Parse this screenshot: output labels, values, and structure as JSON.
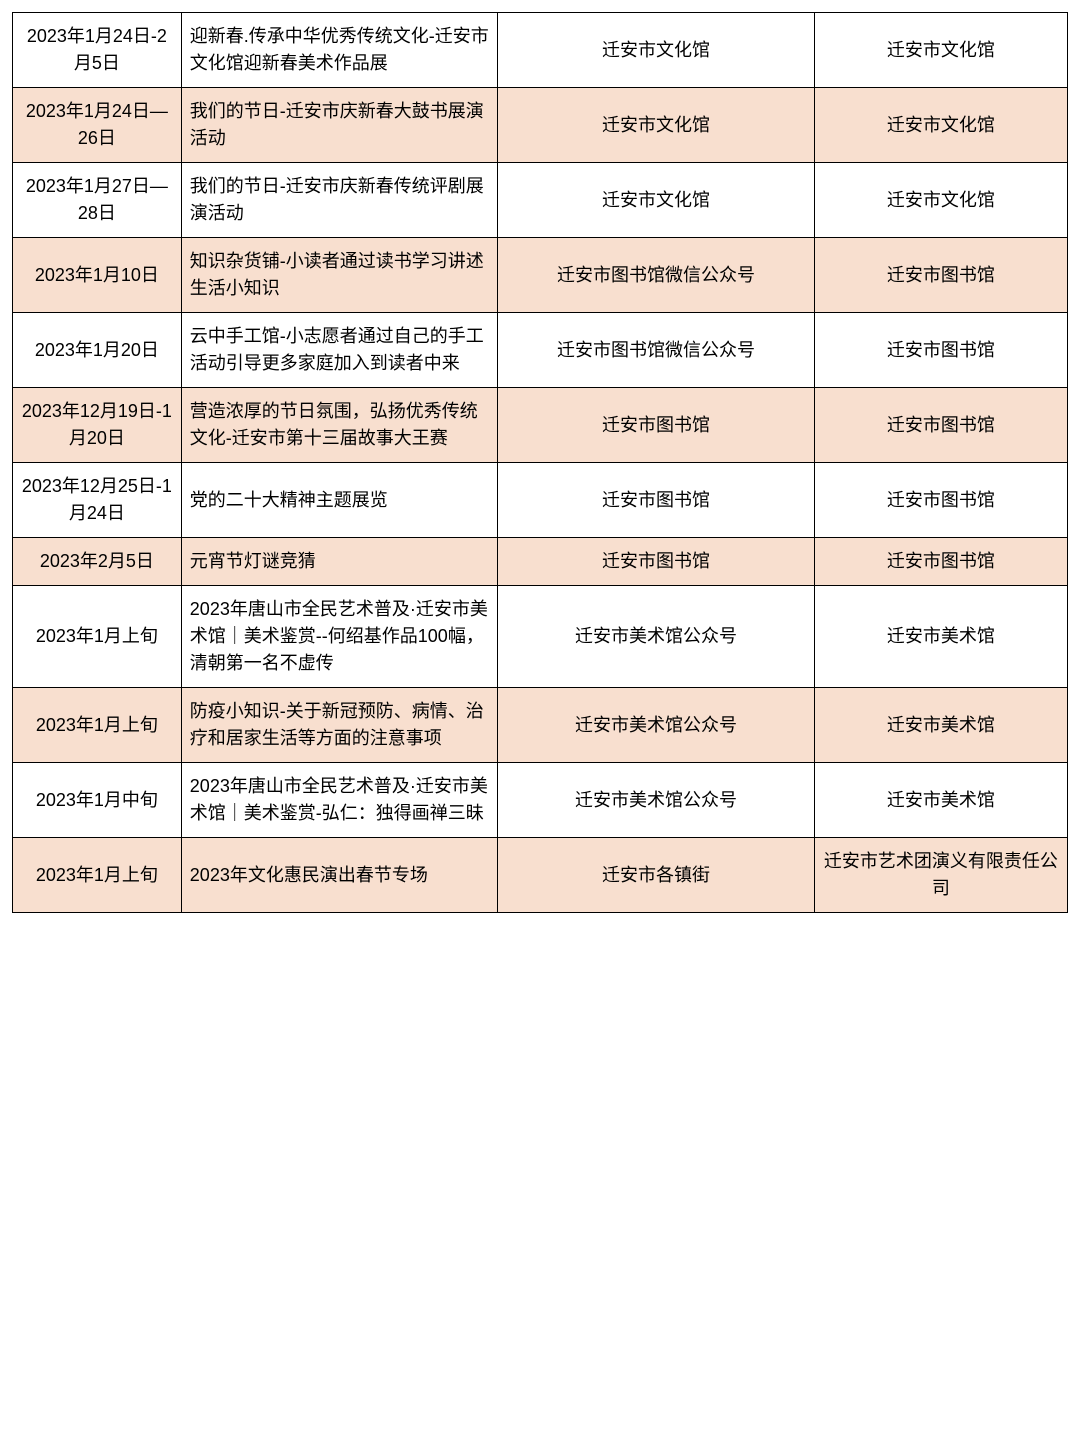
{
  "table": {
    "columns": [
      "date",
      "event",
      "location",
      "organizer"
    ],
    "col_widths_pct": [
      16,
      30,
      30,
      24
    ],
    "col_align": [
      "center",
      "left",
      "center",
      "center"
    ],
    "border_color": "#000000",
    "shade_color": "#f8dfcf",
    "background_color": "#ffffff",
    "font_size_pt": 18,
    "rows": [
      {
        "shaded": false,
        "date": "2023年1月24日-2月5日",
        "event": "迎新春.传承中华优秀传统文化-迁安市文化馆迎新春美术作品展",
        "location": "迁安市文化馆",
        "organizer": "迁安市文化馆"
      },
      {
        "shaded": true,
        "date": "2023年1月24日—26日",
        "event": "我们的节日-迁安市庆新春大鼓书展演活动",
        "location": "迁安市文化馆",
        "organizer": "迁安市文化馆"
      },
      {
        "shaded": false,
        "date": "2023年1月27日—28日",
        "event": "我们的节日-迁安市庆新春传统评剧展演活动",
        "location": "迁安市文化馆",
        "organizer": "迁安市文化馆"
      },
      {
        "shaded": true,
        "date": "2023年1月10日",
        "event": "知识杂货铺-小读者通过读书学习讲述生活小知识",
        "location": "迁安市图书馆微信公众号",
        "organizer": "迁安市图书馆"
      },
      {
        "shaded": false,
        "date": "2023年1月20日",
        "event": "云中手工馆-小志愿者通过自己的手工活动引导更多家庭加入到读者中来",
        "location": "迁安市图书馆微信公众号",
        "organizer": "迁安市图书馆"
      },
      {
        "shaded": true,
        "date": "2023年12月19日-1月20日",
        "event": "营造浓厚的节日氛围，弘扬优秀传统文化-迁安市第十三届故事大王赛",
        "location": "迁安市图书馆",
        "organizer": "迁安市图书馆"
      },
      {
        "shaded": false,
        "date": "2023年12月25日-1月24日",
        "event": "党的二十大精神主题展览",
        "location": "迁安市图书馆",
        "organizer": "迁安市图书馆"
      },
      {
        "shaded": true,
        "date": "2023年2月5日",
        "event": "元宵节灯谜竞猜",
        "location": "迁安市图书馆",
        "organizer": "迁安市图书馆"
      },
      {
        "shaded": false,
        "date": "2023年1月上旬",
        "event": "2023年唐山市全民艺术普及·迁安市美术馆｜美术鉴赏--何绍基作品100幅，清朝第一名不虚传",
        "location": "迁安市美术馆公众号",
        "organizer": "迁安市美术馆"
      },
      {
        "shaded": true,
        "date": "2023年1月上旬",
        "event": "防疫小知识-关于新冠预防、病情、治疗和居家生活等方面的注意事项",
        "location": "迁安市美术馆公众号",
        "organizer": "迁安市美术馆"
      },
      {
        "shaded": false,
        "date": "2023年1月中旬",
        "event": "2023年唐山市全民艺术普及·迁安市美术馆｜美术鉴赏-弘仁：独得画禅三昧",
        "location": "迁安市美术馆公众号",
        "organizer": "迁安市美术馆"
      },
      {
        "shaded": true,
        "date": "2023年1月上旬",
        "event": "2023年文化惠民演出春节专场",
        "location": "迁安市各镇街",
        "organizer": "迁安市艺术团演义有限责任公司"
      }
    ]
  }
}
